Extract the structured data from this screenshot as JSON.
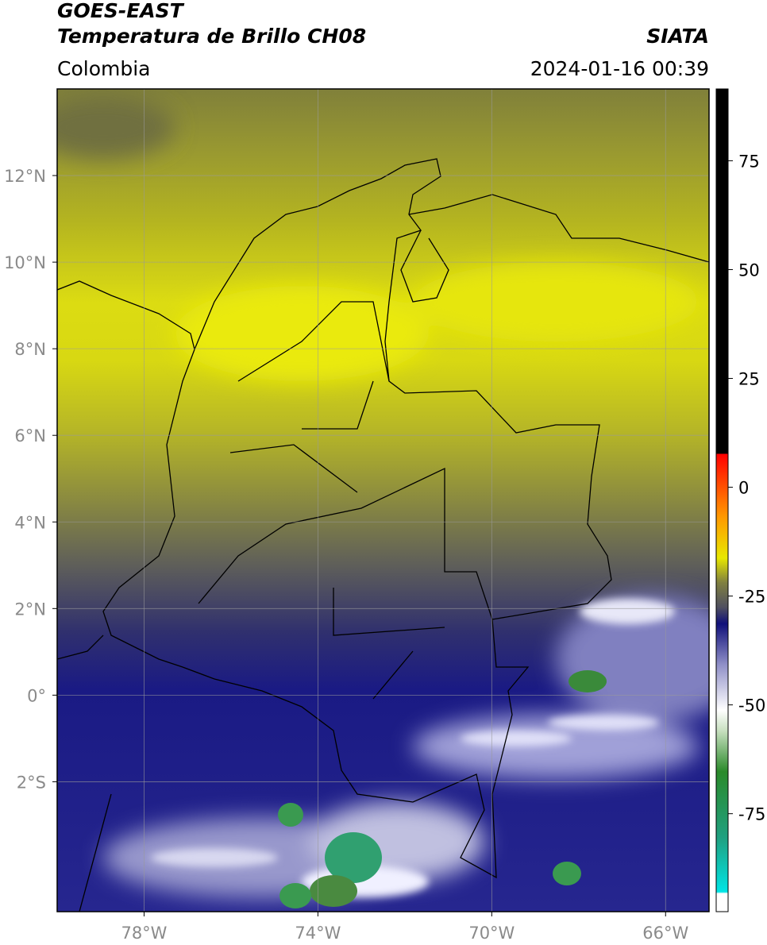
{
  "header": {
    "title": "GOES-EAST",
    "subtitle": "Temperatura de Brillo CH08",
    "source": "SIATA",
    "region": "Colombia",
    "timestamp": "2024-01-16 00:39"
  },
  "map": {
    "xlim": [
      -80,
      -65
    ],
    "ylim": [
      -5,
      14
    ],
    "grid": true,
    "xticks": [
      {
        "value": -78,
        "label": "78°W"
      },
      {
        "value": -74,
        "label": "74°W"
      },
      {
        "value": -70,
        "label": "70°W"
      },
      {
        "value": -66,
        "label": "66°W"
      }
    ],
    "yticks": [
      {
        "value": 12,
        "label": "12°N"
      },
      {
        "value": 10,
        "label": "10°N"
      },
      {
        "value": 8,
        "label": "8°N"
      },
      {
        "value": 6,
        "label": "6°N"
      },
      {
        "value": 4,
        "label": "4°N"
      },
      {
        "value": 2,
        "label": "2°N"
      },
      {
        "value": 0,
        "label": "0°"
      },
      {
        "value": -2,
        "label": "2°S"
      }
    ]
  },
  "colorbar": {
    "clim": [
      -97.5,
      91.5
    ],
    "ticks": [
      75,
      50,
      25,
      0,
      -25,
      -50,
      -75
    ]
  }
}
